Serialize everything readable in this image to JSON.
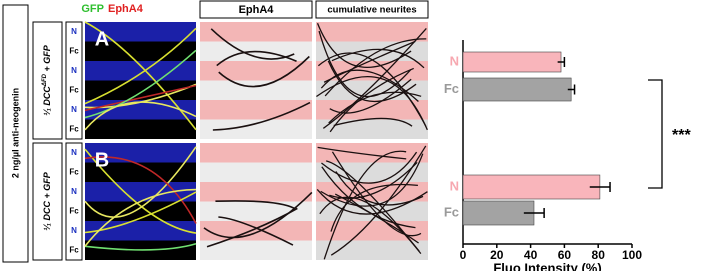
{
  "figure": {
    "side_label": "2 ng/µl anti-neogenin",
    "headers": {
      "gfp": "GFP",
      "epha4_merge": "EphA4",
      "epha4": "EphA4",
      "cumulative": "cumulative neurites"
    },
    "panels": [
      {
        "letter": "A",
        "condition": "¹⁄₁ DCC",
        "condition_sup": "ΔFD",
        "condition_tail": " + GFP",
        "rows": [
          "N",
          "Fc",
          "N",
          "Fc",
          "N",
          "Fc"
        ]
      },
      {
        "letter": "B",
        "condition": "¹⁄₁ DCC",
        "condition_sup": "",
        "condition_tail": " + GFP",
        "rows": [
          "N",
          "Fc",
          "N",
          "Fc",
          "N",
          "Fc"
        ]
      }
    ],
    "significance": "***"
  },
  "chart_data": {
    "type": "bar",
    "orientation": "horizontal",
    "categories": [
      "N",
      "Fc",
      "N",
      "Fc"
    ],
    "values": [
      58,
      64,
      81,
      42
    ],
    "errors": [
      2,
      2,
      6,
      6
    ],
    "colors": [
      "#f9b5bb",
      "#a3a3a3",
      "#f9b5bb",
      "#a3a3a3"
    ],
    "label_colors": [
      "#f7a8b0",
      "#9a9a9a",
      "#f7a8b0",
      "#9a9a9a"
    ],
    "xlim": [
      0,
      100
    ],
    "xticks": [
      0,
      20,
      40,
      60,
      80,
      100
    ],
    "xlabel": "Fluo Intensity (%)"
  }
}
